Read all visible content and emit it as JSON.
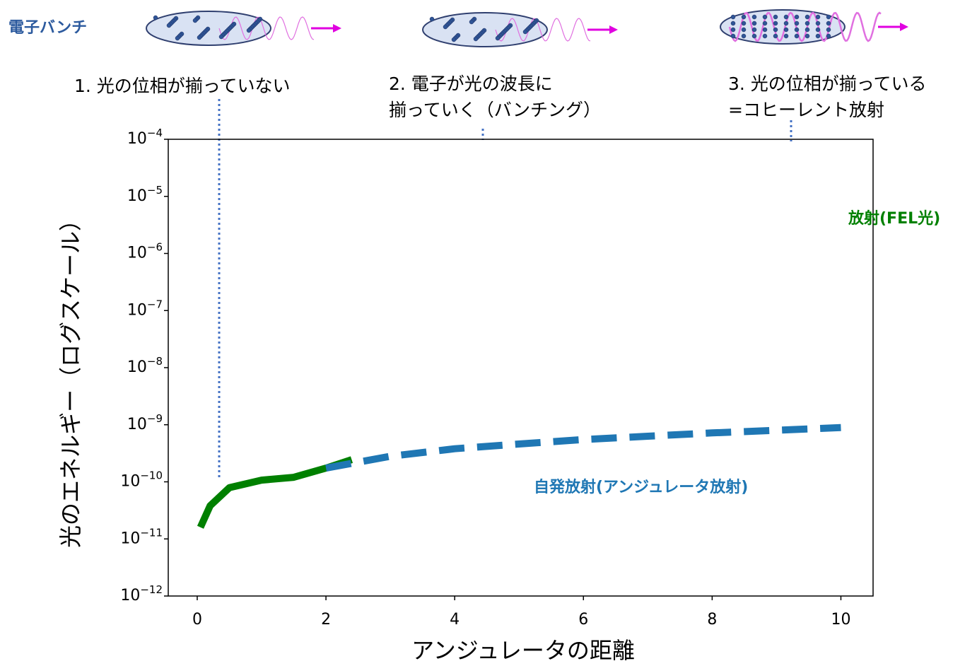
{
  "chart_data": {
    "type": "line",
    "xlabel": "アンジュレータの距離",
    "ylabel": "光のエネルギー（ログスケール）",
    "log_y": true,
    "xlim": [
      -0.45,
      10.5
    ],
    "ylim": [
      1e-12,
      0.0001
    ],
    "xticks": [
      0,
      2,
      4,
      6,
      8,
      10
    ],
    "yticks": [
      {
        "value": 1e-12,
        "label": "10",
        "exponent": "−12"
      },
      {
        "value": 1e-11,
        "label": "10",
        "exponent": "−11"
      },
      {
        "value": 1e-10,
        "label": "10",
        "exponent": "−10"
      },
      {
        "value": 1e-09,
        "label": "10",
        "exponent": "−9"
      },
      {
        "value": 1e-08,
        "label": "10",
        "exponent": "−8"
      },
      {
        "value": 1e-07,
        "label": "10",
        "exponent": "−7"
      },
      {
        "value": 1e-06,
        "label": "10",
        "exponent": "−6"
      },
      {
        "value": 1e-05,
        "label": "10",
        "exponent": "−5"
      },
      {
        "value": 0.0001,
        "label": "10",
        "exponent": "−4"
      }
    ],
    "series": [
      {
        "name": "放射(FEL光)",
        "color": "#008000",
        "dashed": false,
        "x": [
          0.05,
          0.2,
          0.5,
          1.0,
          1.5,
          2.0,
          2.4
        ],
        "values": [
          1.6e-11,
          3.8e-11,
          7.9e-11,
          1.07e-10,
          1.2e-10,
          1.74e-10,
          2.45e-10
        ]
      },
      {
        "name": "自発放射(アンジュレータ放射)",
        "color": "#1f77b4",
        "dashed": true,
        "x": [
          2,
          3,
          4,
          5,
          6,
          7,
          8,
          9,
          10
        ],
        "values": [
          1.74e-10,
          2.8e-10,
          3.8e-10,
          4.6e-10,
          5.5e-10,
          6.3e-10,
          7.2e-10,
          8e-10,
          8.9e-10
        ]
      }
    ],
    "bunch_label": "電子バンチ",
    "stages": [
      {
        "lines": [
          "1. 光の位相が揃っていない"
        ]
      },
      {
        "lines": [
          "2. 電子が光の波長に",
          "揃っていく（バンチング）"
        ]
      },
      {
        "lines": [
          "3. 光の位相が揃っている",
          "=コヒーレント放射"
        ]
      }
    ]
  }
}
